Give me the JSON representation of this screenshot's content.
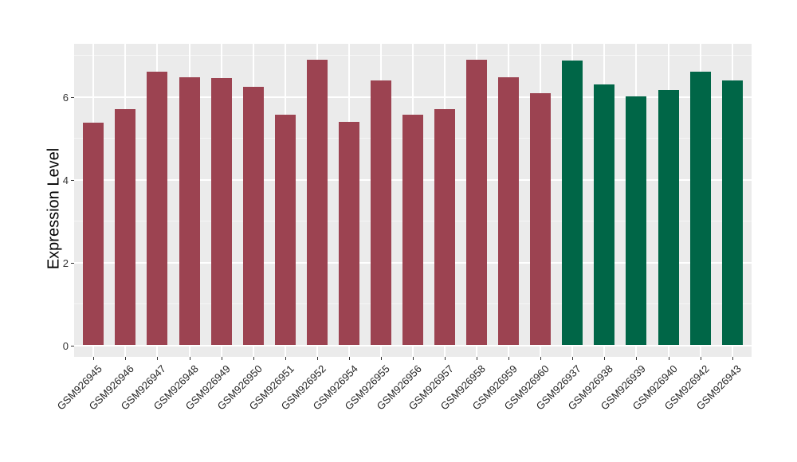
{
  "chart_data": {
    "type": "bar",
    "title": "",
    "xlabel": "",
    "ylabel": "Expression Level",
    "categories": [
      "GSM926945",
      "GSM926946",
      "GSM926947",
      "GSM926948",
      "GSM926949",
      "GSM926950",
      "GSM926951",
      "GSM926952",
      "GSM926954",
      "GSM926955",
      "GSM926956",
      "GSM926957",
      "GSM926958",
      "GSM926959",
      "GSM926960",
      "GSM926937",
      "GSM926938",
      "GSM926939",
      "GSM926940",
      "GSM926942",
      "GSM926943"
    ],
    "values": [
      5.38,
      5.7,
      6.6,
      6.48,
      6.46,
      6.24,
      5.57,
      6.89,
      5.39,
      6.4,
      5.57,
      5.7,
      6.9,
      6.48,
      6.08,
      6.88,
      6.3,
      6.01,
      6.17,
      6.61,
      6.4
    ],
    "bar_colors": [
      "#9C4351",
      "#9C4351",
      "#9C4351",
      "#9C4351",
      "#9C4351",
      "#9C4351",
      "#9C4351",
      "#9C4351",
      "#9C4351",
      "#9C4351",
      "#9C4351",
      "#9C4351",
      "#9C4351",
      "#9C4351",
      "#9C4351",
      "#006647",
      "#006647",
      "#006647",
      "#006647",
      "#006647",
      "#006647"
    ],
    "group_colors": {
      "maroon": "#9C4351",
      "green": "#006647"
    },
    "yticks": [
      0,
      2,
      4,
      6
    ],
    "minor_yticks": [
      1,
      3,
      5,
      7
    ],
    "ylim": [
      -0.28,
      7.28
    ],
    "grid": true,
    "legend_position": "none",
    "x_label_rotation_deg": 45,
    "panel_background": "#EBEBEB",
    "major_gridline_color": "#FFFFFF",
    "minor_gridline_color": "rgba(255,255,255,0.55)",
    "tick_color": "#333333",
    "axis_text_color": "#262626",
    "axis_title_color": "#000000"
  }
}
